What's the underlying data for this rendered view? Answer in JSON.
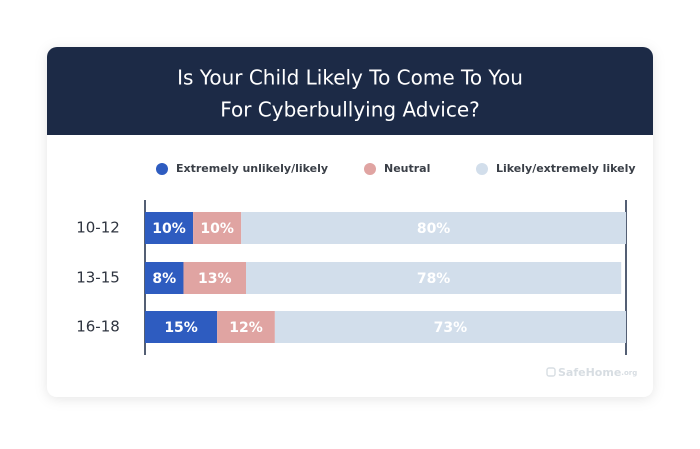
{
  "chart_data": {
    "type": "stacked-bar-horizontal",
    "title_lines": [
      "Is Your Child Likely To Come To You",
      "For Cyberbullying Advice?"
    ],
    "categories": [
      "10-12",
      "13-15",
      "16-18"
    ],
    "series": [
      {
        "name": "Extremely unlikely/likely",
        "color": "#2e5cc0",
        "values": [
          10,
          8,
          15
        ],
        "value_labels": [
          "10%",
          "8%",
          "15%"
        ]
      },
      {
        "name": "Neutral",
        "color": "#e0a4a2",
        "values": [
          10,
          13,
          12
        ],
        "value_labels": [
          "10%",
          "13%",
          "12%"
        ]
      },
      {
        "name": "Likely/extremely likely",
        "color": "#d2deeb",
        "values": [
          80,
          78,
          73
        ],
        "value_labels": [
          "80%",
          "78%",
          "73%"
        ]
      }
    ],
    "xlim": [
      0,
      100
    ],
    "source": "SafeHome",
    "source_suffix": ".org"
  }
}
